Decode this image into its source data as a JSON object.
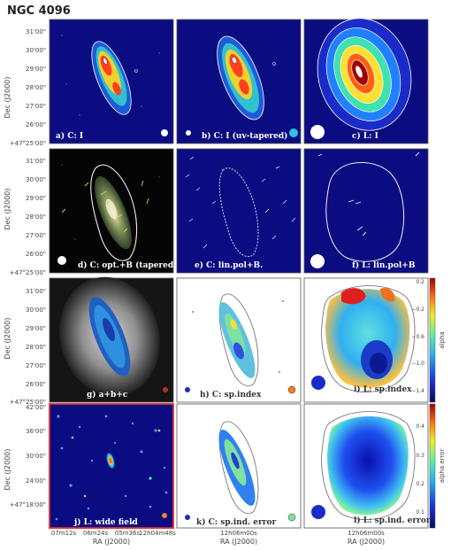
{
  "figure": {
    "title": "NGC 4096",
    "ylabel": "Dec (J2000)",
    "xlabel": "RA (J2000)",
    "colorbar_top_label": "alpha",
    "colorbar_bottom_label": "alpha error"
  },
  "yticks_top": [
    "31'00\"",
    "30'00\"",
    "29'00\"",
    "28'00\"",
    "27'00\"",
    "26'00\"",
    "+47°25'00\""
  ],
  "yticks_bottom": [
    "42'00\"",
    "36'00\"",
    "30'00\"",
    "24'00\"",
    "+47°18'00\""
  ],
  "xticks_left": [
    "07m12s",
    "06m24s",
    "05m36s",
    "12h04m48s"
  ],
  "xtick_mid": "12h06m00s",
  "xtick_right": "12h06m00s",
  "panels": [
    {
      "label": "a) C: I"
    },
    {
      "label": "b) C: I (uv-tapered)"
    },
    {
      "label": "c) L: I"
    },
    {
      "label": "d) C: opt.+B (tapered)"
    },
    {
      "label": "e) C: lin.pol+B."
    },
    {
      "label": "f) L: lin.pol+B"
    },
    {
      "label": "g) a+b+c"
    },
    {
      "label": "h) C: sp.index"
    },
    {
      "label": "i) L: sp.index"
    },
    {
      "label": "j) L: wide field"
    },
    {
      "label": "k) C: sp.ind. error"
    },
    {
      "label": "l) L: sp.ind. error"
    }
  ],
  "colorbar_top": {
    "ticks": [
      "0.2",
      "−0.2",
      "−0.6",
      "−1.0",
      "−1.4"
    ],
    "range": [
      -1.5,
      0.25
    ]
  },
  "colorbar_bottom": {
    "ticks": [
      "0.4",
      "0.3",
      "0.2",
      "0.1"
    ],
    "range": [
      0.05,
      0.48
    ]
  },
  "colors": {
    "navy": "#0c0c82",
    "frame_red": "#e03030"
  }
}
